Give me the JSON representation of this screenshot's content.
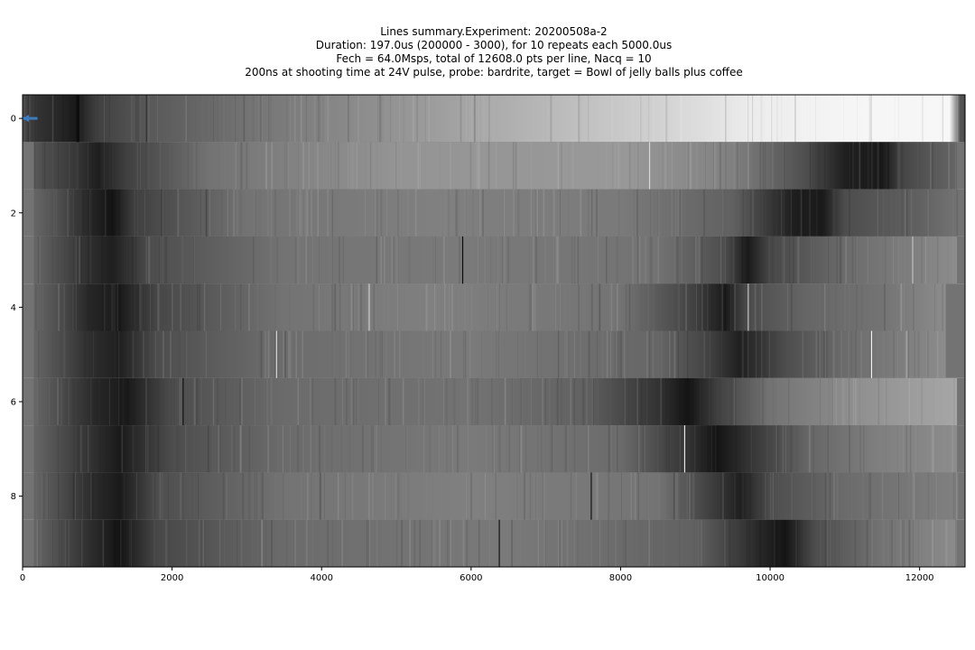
{
  "chart_data": {
    "type": "heatmap",
    "title_lines": [
      "Lines summary.Experiment: 20200508a-2",
      "Duration: 197.0us (200000 - 3000), for 10 repeats each 5000.0us",
      "Fech = 64.0Msps, total of 12608.0 pts per line, Nacq = 10",
      "200ns at shooting time at 24V pulse, probe: bardrite, target = Bowl of jelly balls plus coffee"
    ],
    "colormap": "gray",
    "xlabel": "",
    "ylabel": "",
    "xlim": [
      0,
      12608
    ],
    "ylim": [
      9.5,
      -0.5
    ],
    "x_ticks": [
      0,
      2000,
      4000,
      6000,
      8000,
      10000,
      12000
    ],
    "y_ticks": [
      0,
      2,
      4,
      6,
      8
    ],
    "x_tick_labels": [
      "0",
      "2000",
      "4000",
      "6000",
      "8000",
      "10000",
      "12000"
    ],
    "y_tick_labels": [
      "0",
      "2",
      "4",
      "6",
      "8"
    ],
    "rows": [
      {
        "row": 0,
        "left_edge": 0,
        "right_edge": 12608,
        "keypoints": [
          [
            0,
            0.3
          ],
          [
            200,
            0.2
          ],
          [
            500,
            0.15
          ],
          [
            700,
            0.1
          ],
          [
            1000,
            0.25
          ],
          [
            1700,
            0.35
          ],
          [
            3000,
            0.45
          ],
          [
            5000,
            0.58
          ],
          [
            7000,
            0.72
          ],
          [
            8500,
            0.82
          ],
          [
            9700,
            0.92
          ],
          [
            11000,
            0.96
          ],
          [
            12400,
            0.97
          ],
          [
            12550,
            0.3
          ]
        ],
        "dark_bands": [
          {
            "x": 720,
            "w": 40,
            "v": 0.05
          },
          {
            "x": 1650,
            "w": 15,
            "v": 0.18
          }
        ],
        "light_lines": []
      },
      {
        "row": 1,
        "left_edge": 150,
        "right_edge": 12500,
        "keypoints": [
          [
            0,
            0.35
          ],
          [
            300,
            0.3
          ],
          [
            700,
            0.22
          ],
          [
            1000,
            0.12
          ],
          [
            1400,
            0.25
          ],
          [
            2500,
            0.45
          ],
          [
            5000,
            0.58
          ],
          [
            8000,
            0.6
          ],
          [
            9500,
            0.5
          ],
          [
            10500,
            0.3
          ],
          [
            11000,
            0.12
          ],
          [
            11500,
            0.1
          ],
          [
            11800,
            0.28
          ],
          [
            12500,
            0.4
          ]
        ],
        "dark_bands": [],
        "light_lines": [
          {
            "x": 8380,
            "w": 12,
            "v": 0.85
          }
        ]
      },
      {
        "row": 2,
        "left_edge": 150,
        "right_edge": 12500,
        "keypoints": [
          [
            0,
            0.4
          ],
          [
            500,
            0.3
          ],
          [
            900,
            0.15
          ],
          [
            1200,
            0.08
          ],
          [
            1500,
            0.25
          ],
          [
            3000,
            0.45
          ],
          [
            5500,
            0.5
          ],
          [
            8000,
            0.48
          ],
          [
            9500,
            0.38
          ],
          [
            10300,
            0.12
          ],
          [
            10700,
            0.1
          ],
          [
            11000,
            0.3
          ],
          [
            12000,
            0.38
          ],
          [
            12500,
            0.45
          ]
        ],
        "dark_bands": [],
        "light_lines": []
      },
      {
        "row": 3,
        "left_edge": 150,
        "right_edge": 12500,
        "keypoints": [
          [
            0,
            0.4
          ],
          [
            500,
            0.3
          ],
          [
            900,
            0.18
          ],
          [
            1200,
            0.12
          ],
          [
            1700,
            0.3
          ],
          [
            3500,
            0.45
          ],
          [
            5800,
            0.48
          ],
          [
            8500,
            0.45
          ],
          [
            9400,
            0.3
          ],
          [
            9700,
            0.1
          ],
          [
            10000,
            0.28
          ],
          [
            11000,
            0.42
          ],
          [
            12500,
            0.55
          ]
        ],
        "dark_bands": [
          {
            "x": 5880,
            "w": 15,
            "v": 0.05
          }
        ],
        "light_lines": [
          {
            "x": 11900,
            "w": 15,
            "v": 0.75
          }
        ]
      },
      {
        "row": 4,
        "left_edge": 150,
        "right_edge": 12350,
        "keypoints": [
          [
            0,
            0.4
          ],
          [
            500,
            0.3
          ],
          [
            900,
            0.15
          ],
          [
            1300,
            0.1
          ],
          [
            1800,
            0.28
          ],
          [
            3500,
            0.45
          ],
          [
            5500,
            0.5
          ],
          [
            8000,
            0.45
          ],
          [
            9000,
            0.25
          ],
          [
            9400,
            0.1
          ],
          [
            9700,
            0.3
          ],
          [
            10500,
            0.4
          ],
          [
            11500,
            0.45
          ],
          [
            12350,
            0.55
          ]
        ],
        "dark_bands": [],
        "light_lines": [
          {
            "x": 4630,
            "w": 12,
            "v": 0.8
          },
          {
            "x": 9700,
            "w": 10,
            "v": 0.75
          }
        ]
      },
      {
        "row": 5,
        "left_edge": 150,
        "right_edge": 12350,
        "keypoints": [
          [
            0,
            0.4
          ],
          [
            500,
            0.3
          ],
          [
            900,
            0.18
          ],
          [
            1300,
            0.12
          ],
          [
            1800,
            0.3
          ],
          [
            3300,
            0.42
          ],
          [
            6000,
            0.48
          ],
          [
            8500,
            0.4
          ],
          [
            9200,
            0.25
          ],
          [
            9600,
            0.12
          ],
          [
            10200,
            0.3
          ],
          [
            11000,
            0.42
          ],
          [
            12350,
            0.55
          ]
        ],
        "dark_bands": [],
        "light_lines": [
          {
            "x": 3390,
            "w": 12,
            "v": 0.85
          },
          {
            "x": 11350,
            "w": 12,
            "v": 0.95
          }
        ]
      },
      {
        "row": 6,
        "left_edge": 150,
        "right_edge": 12500,
        "keypoints": [
          [
            0,
            0.4
          ],
          [
            500,
            0.3
          ],
          [
            1000,
            0.15
          ],
          [
            1400,
            0.1
          ],
          [
            2000,
            0.3
          ],
          [
            3500,
            0.42
          ],
          [
            6000,
            0.45
          ],
          [
            7500,
            0.38
          ],
          [
            8500,
            0.2
          ],
          [
            8900,
            0.08
          ],
          [
            9300,
            0.25
          ],
          [
            10000,
            0.45
          ],
          [
            11000,
            0.55
          ],
          [
            12000,
            0.62
          ],
          [
            12500,
            0.65
          ]
        ],
        "dark_bands": [
          {
            "x": 2140,
            "w": 15,
            "v": 0.08
          }
        ],
        "light_lines": []
      },
      {
        "row": 7,
        "left_edge": 150,
        "right_edge": 12500,
        "keypoints": [
          [
            0,
            0.4
          ],
          [
            500,
            0.3
          ],
          [
            900,
            0.2
          ],
          [
            1300,
            0.1
          ],
          [
            2000,
            0.3
          ],
          [
            3500,
            0.42
          ],
          [
            6000,
            0.48
          ],
          [
            8000,
            0.42
          ],
          [
            8900,
            0.2
          ],
          [
            9300,
            0.08
          ],
          [
            9700,
            0.2
          ],
          [
            10500,
            0.4
          ],
          [
            11500,
            0.5
          ],
          [
            12500,
            0.55
          ]
        ],
        "dark_bands": [],
        "light_lines": [
          {
            "x": 8850,
            "w": 12,
            "v": 0.9
          }
        ]
      },
      {
        "row": 8,
        "left_edge": 150,
        "right_edge": 12500,
        "keypoints": [
          [
            0,
            0.4
          ],
          [
            500,
            0.3
          ],
          [
            900,
            0.18
          ],
          [
            1300,
            0.1
          ],
          [
            1800,
            0.3
          ],
          [
            3500,
            0.45
          ],
          [
            6000,
            0.5
          ],
          [
            8500,
            0.45
          ],
          [
            9300,
            0.22
          ],
          [
            9600,
            0.12
          ],
          [
            10000,
            0.3
          ],
          [
            11000,
            0.42
          ],
          [
            12500,
            0.5
          ]
        ],
        "dark_bands": [
          {
            "x": 7600,
            "w": 12,
            "v": 0.08
          }
        ],
        "light_lines": []
      },
      {
        "row": 9,
        "left_edge": 150,
        "right_edge": 12500,
        "keypoints": [
          [
            0,
            0.4
          ],
          [
            500,
            0.3
          ],
          [
            900,
            0.18
          ],
          [
            1300,
            0.08
          ],
          [
            1800,
            0.28
          ],
          [
            3500,
            0.42
          ],
          [
            6500,
            0.48
          ],
          [
            9000,
            0.38
          ],
          [
            9900,
            0.15
          ],
          [
            10200,
            0.08
          ],
          [
            10600,
            0.3
          ],
          [
            11500,
            0.45
          ],
          [
            12500,
            0.55
          ]
        ],
        "dark_bands": [
          {
            "x": 6370,
            "w": 12,
            "v": 0.08
          }
        ],
        "light_lines": []
      }
    ],
    "marker": {
      "row": 0,
      "x_start": 0,
      "x_end": 200,
      "color": "#3b7bbf"
    }
  }
}
